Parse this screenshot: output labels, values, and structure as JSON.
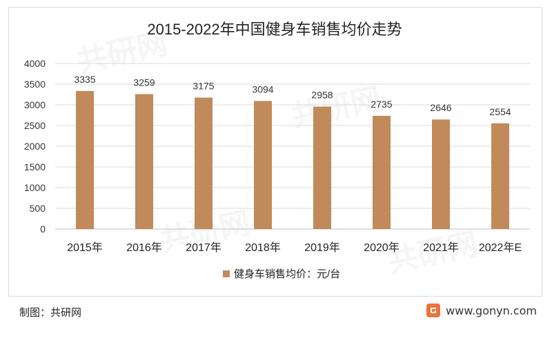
{
  "chart_data": {
    "type": "bar",
    "title": "2015-2022年中国健身车销售均价走势",
    "categories": [
      "2015年",
      "2016年",
      "2017年",
      "2018年",
      "2019年",
      "2020年",
      "2021年",
      "2022年E"
    ],
    "series": [
      {
        "name": "健身车销售均价：元/台",
        "values": [
          3335,
          3259,
          3175,
          3094,
          2958,
          2735,
          2646,
          2554
        ],
        "color": "#c08a5b"
      }
    ],
    "ylim": [
      0,
      4000
    ],
    "yticks": [
      0,
      500,
      1000,
      1500,
      2000,
      2500,
      3000,
      3500,
      4000
    ],
    "grid": true,
    "legend": "bottom",
    "data_labels": true
  },
  "footer": {
    "source": "制图：共研网",
    "website": "www.gonyn.com",
    "logo_icon": "gonyn-logo-icon",
    "logo_color": "#e8743b"
  },
  "watermark": {
    "text": "共研网"
  }
}
